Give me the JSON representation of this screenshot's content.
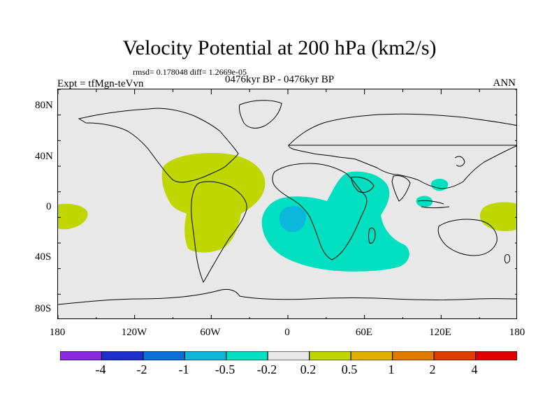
{
  "header": {
    "title": "Velocity Potential at 200 hPa (km2/s)",
    "stats": "rmsd= 0.178048 diff= 1.2669e-05",
    "expt": "Expt = tfMgn-teVvn",
    "period": "0476kyr BP - 0476kyr BP",
    "season": "ANN"
  },
  "map": {
    "lat_ticks": [
      "80N",
      "40N",
      "0",
      "40S",
      "80S"
    ],
    "lon_ticks": [
      "180",
      "120W",
      "60W",
      "0",
      "60E",
      "120E",
      "180"
    ],
    "background_color": "#e8e8e8",
    "regions": [
      {
        "name": "Americas positive anomaly",
        "level": "0.2 to 0.5",
        "color": "#bfd600"
      },
      {
        "name": "Central Pacific positive anomaly",
        "level": "0.2 to 0.5",
        "color": "#bfd600"
      },
      {
        "name": "West Pacific positive anomaly",
        "level": "0.2 to 0.5",
        "color": "#bfd600"
      },
      {
        "name": "Africa / Indian Ocean negative anomaly",
        "level": "-0.5 to -0.2",
        "color": "#00e0c0"
      },
      {
        "name": "Gulf of Guinea negative anomaly",
        "level": "-1 to -0.5",
        "color": "#0bb8dc"
      },
      {
        "name": "Maritime Continent negative anomaly",
        "level": "-0.5 to -0.2",
        "color": "#00e0c0"
      }
    ]
  },
  "colorbar": {
    "colors": [
      "#8a2be2",
      "#1e2ecc",
      "#0a6fd8",
      "#0bb8dc",
      "#00e0c0",
      "#e8e8e8",
      "#bfd600",
      "#e0b000",
      "#e07a00",
      "#e03c00",
      "#e00000"
    ],
    "labels": [
      "-4",
      "-2",
      "-1",
      "-0.5",
      "-0.2",
      "0.2",
      "0.5",
      "1",
      "2",
      "4"
    ]
  }
}
